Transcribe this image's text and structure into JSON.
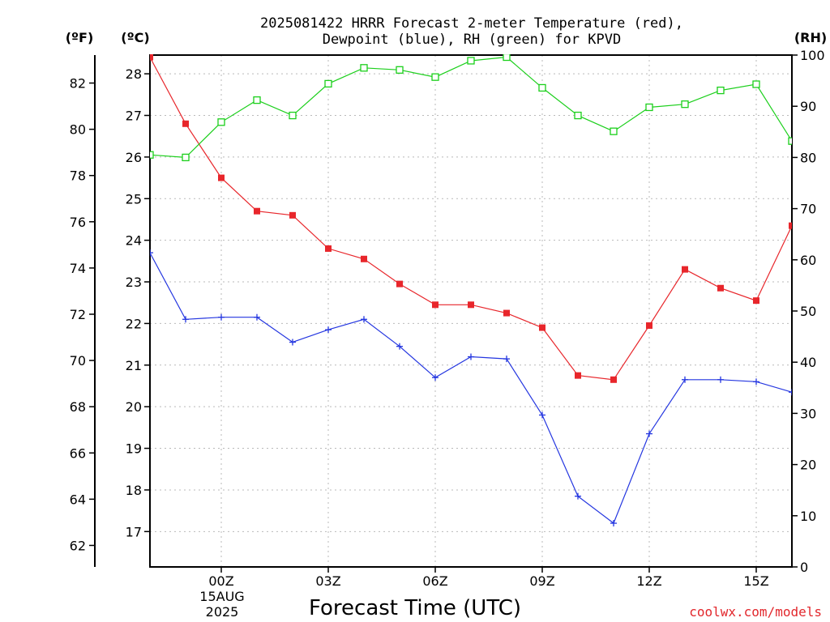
{
  "chart_data": {
    "type": "line",
    "title_line1": "2025081422 HRRR Forecast 2-meter Temperature (red),",
    "title_line2": "Dewpoint (blue), RH (green) for KPVD",
    "xlabel": "Forecast Time (UTC)",
    "date_label_line1": "15AUG",
    "date_label_line2": "2025",
    "unit_f": "(ºF)",
    "unit_c": "(ºC)",
    "unit_rh": "(RH)",
    "credit": "coolwx.com/models",
    "x_hours": [
      -2,
      -1,
      0,
      1,
      2,
      3,
      4,
      5,
      6,
      7,
      8,
      9,
      10,
      11,
      12,
      13,
      14,
      15,
      16
    ],
    "xlim": [
      -2,
      16
    ],
    "x_ticks": [
      {
        "hour": 0,
        "label": "00Z"
      },
      {
        "hour": 3,
        "label": "03Z"
      },
      {
        "hour": 6,
        "label": "06Z"
      },
      {
        "hour": 9,
        "label": "09Z"
      },
      {
        "hour": 12,
        "label": "12Z"
      },
      {
        "hour": 15,
        "label": "15Z"
      }
    ],
    "ylim_c": [
      16.15,
      28.45
    ],
    "c_ticks": [
      17,
      18,
      19,
      20,
      21,
      22,
      23,
      24,
      25,
      26,
      27,
      28
    ],
    "f_ticks": [
      62,
      64,
      66,
      68,
      70,
      72,
      74,
      76,
      78,
      80,
      82
    ],
    "rh_ticks": [
      0,
      10,
      20,
      30,
      40,
      50,
      60,
      70,
      80,
      90,
      100
    ],
    "ylim_rh": [
      0,
      100
    ],
    "series": [
      {
        "name": "Temperature",
        "axis": "C",
        "color": "#e8262b",
        "marker": "filled-square",
        "values": [
          28.4,
          26.8,
          25.5,
          24.7,
          24.6,
          23.8,
          23.55,
          22.95,
          22.45,
          22.45,
          22.25,
          21.9,
          20.75,
          20.65,
          21.95,
          23.3,
          22.85,
          22.55,
          24.35
        ]
      },
      {
        "name": "Dewpoint",
        "axis": "C",
        "color": "#2436e0",
        "marker": "plus",
        "values": [
          23.7,
          22.1,
          22.15,
          22.15,
          21.55,
          21.85,
          22.1,
          21.45,
          20.7,
          21.2,
          21.15,
          19.8,
          17.85,
          17.2,
          19.35,
          20.65,
          20.65,
          20.6,
          20.35
        ]
      },
      {
        "name": "RH",
        "axis": "RH",
        "color": "#1bcf1b",
        "marker": "open-square",
        "values": [
          80.5,
          80.0,
          86.9,
          91.2,
          88.2,
          94.4,
          97.5,
          97.1,
          95.7,
          98.9,
          99.6,
          93.6,
          88.2,
          85.1,
          89.8,
          90.4,
          93.1,
          94.3,
          83.2
        ]
      }
    ]
  }
}
